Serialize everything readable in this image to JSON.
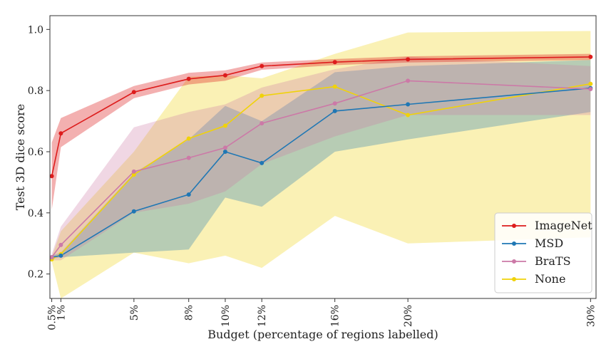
{
  "chart_data": {
    "type": "line",
    "title": "",
    "xlabel": "Budget (percentage of regions labelled)",
    "ylabel": "Test 3D dice score",
    "x": [
      0.5,
      1,
      5,
      8,
      10,
      12,
      16,
      20,
      30
    ],
    "x_tick_labels": [
      "0.5%",
      "1%",
      "5%",
      "8%",
      "10%",
      "12%",
      "16%",
      "20%",
      "30%"
    ],
    "xlim": [
      0.4,
      30.3
    ],
    "ylim": [
      0.12,
      1.045
    ],
    "y_ticks": [
      0.2,
      0.4,
      0.6,
      0.8,
      1.0
    ],
    "y_tick_labels": [
      "0.2",
      "0.4",
      "0.6",
      "0.8",
      "1.0"
    ],
    "grid": false,
    "legend_position": "bottom-right",
    "series": [
      {
        "name": "ImageNet",
        "color": "#dd1c1c",
        "values": [
          0.52,
          0.66,
          0.795,
          0.838,
          0.85,
          0.88,
          0.893,
          0.902,
          0.91
        ],
        "lower": [
          0.41,
          0.615,
          0.775,
          0.82,
          0.832,
          0.868,
          0.883,
          0.892,
          0.9
        ],
        "upper": [
          0.63,
          0.71,
          0.815,
          0.858,
          0.866,
          0.892,
          0.903,
          0.912,
          0.92
        ]
      },
      {
        "name": "MSD",
        "color": "#1f77b4",
        "values": [
          0.255,
          0.26,
          0.405,
          0.46,
          0.6,
          0.563,
          0.733,
          0.755,
          0.808
        ],
        "lower": [
          0.25,
          0.255,
          0.27,
          0.28,
          0.45,
          0.42,
          0.6,
          0.64,
          0.73
        ],
        "upper": [
          0.26,
          0.27,
          0.53,
          0.64,
          0.75,
          0.7,
          0.86,
          0.88,
          0.9
        ]
      },
      {
        "name": "BraTS",
        "color": "#cc79a7",
        "values": [
          0.255,
          0.295,
          0.535,
          0.58,
          0.613,
          0.693,
          0.758,
          0.832,
          0.805
        ],
        "lower": [
          0.245,
          0.245,
          0.4,
          0.43,
          0.47,
          0.56,
          0.65,
          0.72,
          0.72
        ],
        "upper": [
          0.265,
          0.355,
          0.68,
          0.73,
          0.755,
          0.81,
          0.87,
          0.91,
          0.88
        ]
      },
      {
        "name": "None",
        "color": "#f0d20a",
        "values": [
          0.248,
          0.265,
          0.525,
          0.643,
          0.685,
          0.783,
          0.813,
          0.72,
          0.822
        ],
        "lower": [
          0.24,
          0.12,
          0.27,
          0.235,
          0.26,
          0.22,
          0.39,
          0.3,
          0.32
        ],
        "upper": [
          0.256,
          0.34,
          0.6,
          0.845,
          0.85,
          0.84,
          0.92,
          0.99,
          0.995
        ]
      }
    ]
  }
}
